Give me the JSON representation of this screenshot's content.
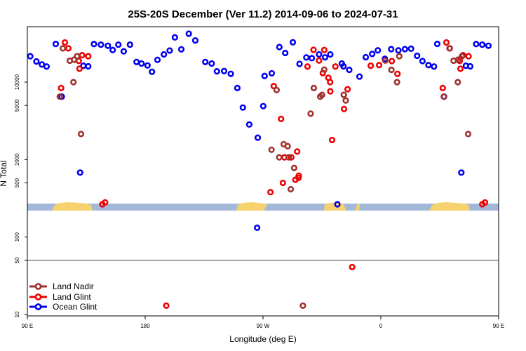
{
  "chart_data": {
    "type": "scatter",
    "title": "25S-20S December (Ver 11.2)   2014-09-06 to 2024-07-31",
    "xlabel": "Longitude (deg E)",
    "ylabel": "N Total",
    "x_axis": {
      "range": [
        90,
        450
      ],
      "ticks": [
        {
          "value": 90,
          "label": "90 E"
        },
        {
          "value": 180,
          "label": "180"
        },
        {
          "value": 270,
          "label": "90 W"
        },
        {
          "value": 360,
          "label": "0"
        },
        {
          "value": 450,
          "label": "90 E"
        },
        {
          "value": 540,
          "label": "180"
        }
      ]
    },
    "y_axis": {
      "scale": "log",
      "reference_line": 50,
      "ticks": [
        {
          "value": 10,
          "label": "10"
        },
        {
          "value": 50,
          "label": "50"
        },
        {
          "value": 100,
          "label": "100"
        },
        {
          "value": 500,
          "label": "500"
        },
        {
          "value": 1000,
          "label": "1000"
        },
        {
          "value": 5000,
          "label": "5000"
        },
        {
          "value": 10000,
          "label": "10000"
        }
      ]
    },
    "legend": {
      "position": "bottom-left",
      "entries": [
        {
          "label": "Land Nadir",
          "color": "#a0302c"
        },
        {
          "label": "Land Glint",
          "color": "#ee0000"
        },
        {
          "label": "Ocean Glint",
          "color": "#0000ee"
        }
      ]
    },
    "colors": {
      "map_ocean": "#a3b8d9",
      "map_land": "#f5d26e"
    },
    "series": [
      {
        "name": "Ocean Glint",
        "color": "#0000ee",
        "points": [
          [
            92.2,
            21600
          ],
          [
            96.9,
            18500
          ],
          [
            101.1,
            16900
          ],
          [
            104.7,
            15900
          ],
          [
            111.7,
            31100
          ],
          [
            116.3,
            6500
          ],
          [
            130.3,
            680
          ],
          [
            132.8,
            16300
          ],
          [
            136.5,
            16000
          ],
          [
            140.9,
            31000
          ],
          [
            146.2,
            30500
          ],
          [
            151.5,
            29500
          ],
          [
            155.2,
            26000
          ],
          [
            159.5,
            30500
          ],
          [
            163.6,
            25000
          ],
          [
            168.4,
            30500
          ],
          [
            173.4,
            18200
          ],
          [
            177.2,
            17400
          ],
          [
            181.8,
            16400
          ],
          [
            185.2,
            13600
          ],
          [
            189.4,
            19400
          ],
          [
            194.3,
            22800
          ],
          [
            198.7,
            25600
          ],
          [
            202.7,
            37800
          ],
          [
            207.6,
            26500
          ],
          [
            213.3,
            42200
          ],
          [
            218.3,
            34500
          ],
          [
            225.9,
            18200
          ],
          [
            230.8,
            17400
          ],
          [
            234.8,
            13800
          ],
          [
            240.3,
            13900
          ],
          [
            245.4,
            12800
          ],
          [
            250.4,
            8400
          ],
          [
            254.6,
            4700
          ],
          [
            259.5,
            2840
          ],
          [
            265.5,
            132
          ],
          [
            266.0,
            1920
          ],
          [
            270.2,
            4900
          ],
          [
            271.2,
            12000
          ],
          [
            276.7,
            13000
          ],
          [
            282.5,
            28400
          ],
          [
            287.0,
            23800
          ],
          [
            292.8,
            32700
          ],
          [
            297.9,
            17200
          ],
          [
            303.1,
            20800
          ],
          [
            307.3,
            20400
          ],
          [
            312.8,
            22800
          ],
          [
            317.4,
            20900
          ],
          [
            321.4,
            22800
          ],
          [
            326.8,
            265
          ],
          [
            330.2,
            17400
          ],
          [
            331.5,
            16000
          ],
          [
            335.9,
            14400
          ],
          [
            343.7,
            11800
          ],
          [
            348.5,
            21000
          ],
          [
            353.4,
            23100
          ],
          [
            357.7,
            25700
          ],
          [
            363.1,
            20000
          ],
          [
            367.9,
            26700
          ],
          [
            373.4,
            25700
          ],
          [
            378.4,
            26700
          ],
          [
            383.1,
            27000
          ],
          [
            387.7,
            21900
          ],
          [
            391.8,
            18700
          ],
          [
            396.4,
            16600
          ],
          [
            400.6,
            15900
          ],
          [
            403.1,
            31200
          ],
          [
            408.3,
            6500
          ],
          [
            421.5,
            680
          ],
          [
            425.0,
            16300
          ],
          [
            428.3,
            16000
          ],
          [
            432.8,
            31000
          ],
          [
            437.5,
            30500
          ],
          [
            442.2,
            29500
          ]
        ]
      },
      {
        "name": "Land Glint",
        "color": "#ee0000",
        "points": [
          [
            115.8,
            8400
          ],
          [
            118.7,
            32500
          ],
          [
            121.3,
            27300
          ],
          [
            129.3,
            18800
          ],
          [
            129.8,
            14900
          ],
          [
            131.8,
            22300
          ],
          [
            136.5,
            21600
          ],
          [
            147.3,
            265
          ],
          [
            149.4,
            280
          ],
          [
            196.1,
            13
          ],
          [
            275.7,
            380
          ],
          [
            278.2,
            8900
          ],
          [
            283.8,
            3350
          ],
          [
            285.2,
            500
          ],
          [
            286.4,
            1070
          ],
          [
            291.6,
            1070
          ],
          [
            294.8,
            550
          ],
          [
            297.1,
            580
          ],
          [
            297.3,
            620
          ],
          [
            296.1,
            1270
          ],
          [
            304.0,
            15900
          ],
          [
            308.6,
            26100
          ],
          [
            312.8,
            19000
          ],
          [
            315.7,
            13100
          ],
          [
            316.8,
            26000
          ],
          [
            319.9,
            11400
          ],
          [
            321.3,
            10000
          ],
          [
            321.4,
            7600
          ],
          [
            322.8,
            1790
          ],
          [
            325.3,
            15900
          ],
          [
            331.9,
            4500
          ],
          [
            334.6,
            8100
          ],
          [
            338.1,
            41
          ],
          [
            352.3,
            16300
          ],
          [
            358.7,
            16600
          ],
          [
            368.4,
            18700
          ],
          [
            372.7,
            12800
          ],
          [
            407.3,
            8400
          ],
          [
            410.1,
            32500
          ],
          [
            412.5,
            27300
          ],
          [
            420.3,
            18800
          ],
          [
            420.8,
            14900
          ],
          [
            422.8,
            22300
          ],
          [
            427.0,
            21600
          ],
          [
            437.5,
            265
          ],
          [
            439.6,
            280
          ]
        ]
      },
      {
        "name": "Land Nadir",
        "color": "#a0302c",
        "points": [
          [
            114.8,
            6500
          ],
          [
            117.1,
            27300
          ],
          [
            122.4,
            18900
          ],
          [
            125.2,
            10000
          ],
          [
            125.7,
            19500
          ],
          [
            128.0,
            21600
          ],
          [
            131.0,
            2140
          ],
          [
            276.5,
            1340
          ],
          [
            280.4,
            7900
          ],
          [
            282.4,
            1070
          ],
          [
            285.8,
            1580
          ],
          [
            288.8,
            1490
          ],
          [
            289.6,
            1070
          ],
          [
            291.2,
            415
          ],
          [
            293.8,
            780
          ],
          [
            300.5,
            13
          ],
          [
            306.4,
            3920
          ],
          [
            308.8,
            8400
          ],
          [
            313.7,
            6500
          ],
          [
            315.1,
            6850
          ],
          [
            316.8,
            14500
          ],
          [
            331.7,
            6850
          ],
          [
            333.2,
            5800
          ],
          [
            363.4,
            19000
          ],
          [
            368.1,
            14400
          ],
          [
            372.4,
            10000
          ],
          [
            374.1,
            21600
          ],
          [
            408.1,
            6500
          ],
          [
            412.7,
            27300
          ],
          [
            415.6,
            18900
          ],
          [
            418.8,
            10000
          ],
          [
            419.0,
            19500
          ],
          [
            422.0,
            21600
          ],
          [
            426.7,
            2140
          ]
        ]
      }
    ]
  }
}
